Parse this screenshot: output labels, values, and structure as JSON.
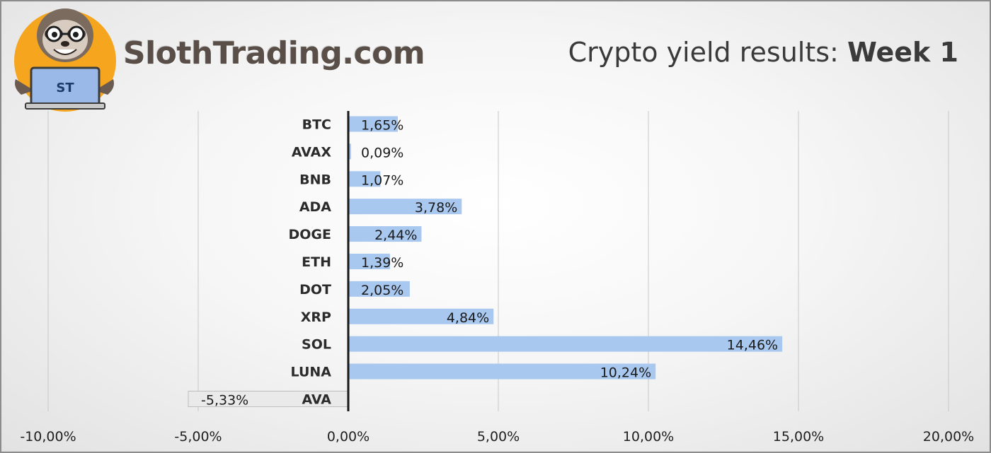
{
  "brand": {
    "name": "SlothTrading.com",
    "logo_text": "ST",
    "logo_icon": "sloth-with-laptop-icon"
  },
  "header": {
    "title_prefix": "Crypto yield results: ",
    "title_bold": "Week 1"
  },
  "colors": {
    "positive_bar": "#a9c8f0",
    "negative_bar": "#eaeaea",
    "axis": "#1a1a1a",
    "gridline": "#c8c8c8",
    "logo_circle": "#f5a51e"
  },
  "chart_data": {
    "type": "bar",
    "orientation": "horizontal",
    "categories": [
      "BTC",
      "AVAX",
      "BNB",
      "ADA",
      "DOGE",
      "ETH",
      "DOT",
      "XRP",
      "SOL",
      "LUNA",
      "AVA"
    ],
    "values": [
      1.65,
      0.09,
      1.07,
      3.78,
      2.44,
      1.39,
      2.05,
      4.84,
      14.46,
      10.24,
      -5.33
    ],
    "data_labels": [
      "1,65%",
      "0,09%",
      "1,07%",
      "3,78%",
      "2,44%",
      "1,39%",
      "2,05%",
      "4,84%",
      "14,46%",
      "10,24%",
      "-5,33%"
    ],
    "x_ticks": [
      -10,
      -5,
      0,
      5,
      10,
      15,
      20
    ],
    "x_tick_labels": [
      "-10,00%",
      "-5,00%",
      "0,00%",
      "5,00%",
      "10,00%",
      "15,00%",
      "20,00%"
    ],
    "xlim": [
      -10,
      20
    ],
    "title": "Crypto yield results: Week 1",
    "xlabel": "",
    "ylabel": "",
    "grid": true,
    "legend": "none"
  }
}
